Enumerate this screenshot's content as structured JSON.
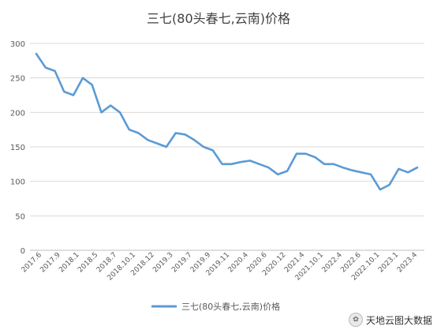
{
  "colors": {
    "line": "#5b9bd5",
    "grid": "#d9d9d9",
    "axis": "#bfbfbf",
    "text": "#595959",
    "title": "#404040"
  },
  "watermark": {
    "icon": "wechat-icon",
    "text": "天地云图大数据"
  },
  "chart_data": {
    "type": "line",
    "title": "三七(80头春七,云南)价格",
    "xlabel": "",
    "ylabel": "",
    "ylim": [
      0,
      300
    ],
    "yticks": [
      0,
      50,
      100,
      150,
      200,
      250,
      300
    ],
    "grid": true,
    "legend": "bottom",
    "x_tick_labels": [
      "2017.6",
      "2017.9",
      "2018.1",
      "2018.5",
      "2018.7",
      "2018.10.1",
      "2018.12",
      "2019.3",
      "2019.7",
      "2019.9",
      "2019.11",
      "2020.4",
      "2020.6",
      "2020.12",
      "2021.4",
      "2021.10.1",
      "2022.4",
      "2022.6",
      "2022.10.1",
      "2023.1",
      "2023.4"
    ],
    "series": [
      {
        "name": "三七(80头春七,云南)价格",
        "values": [
          285,
          265,
          260,
          230,
          225,
          250,
          240,
          200,
          210,
          200,
          175,
          170,
          160,
          155,
          150,
          170,
          168,
          160,
          150,
          145,
          125,
          125,
          128,
          130,
          125,
          120,
          110,
          115,
          140,
          140,
          135,
          125,
          125,
          120,
          116,
          113,
          110,
          88,
          95,
          118,
          113,
          120
        ]
      }
    ]
  }
}
